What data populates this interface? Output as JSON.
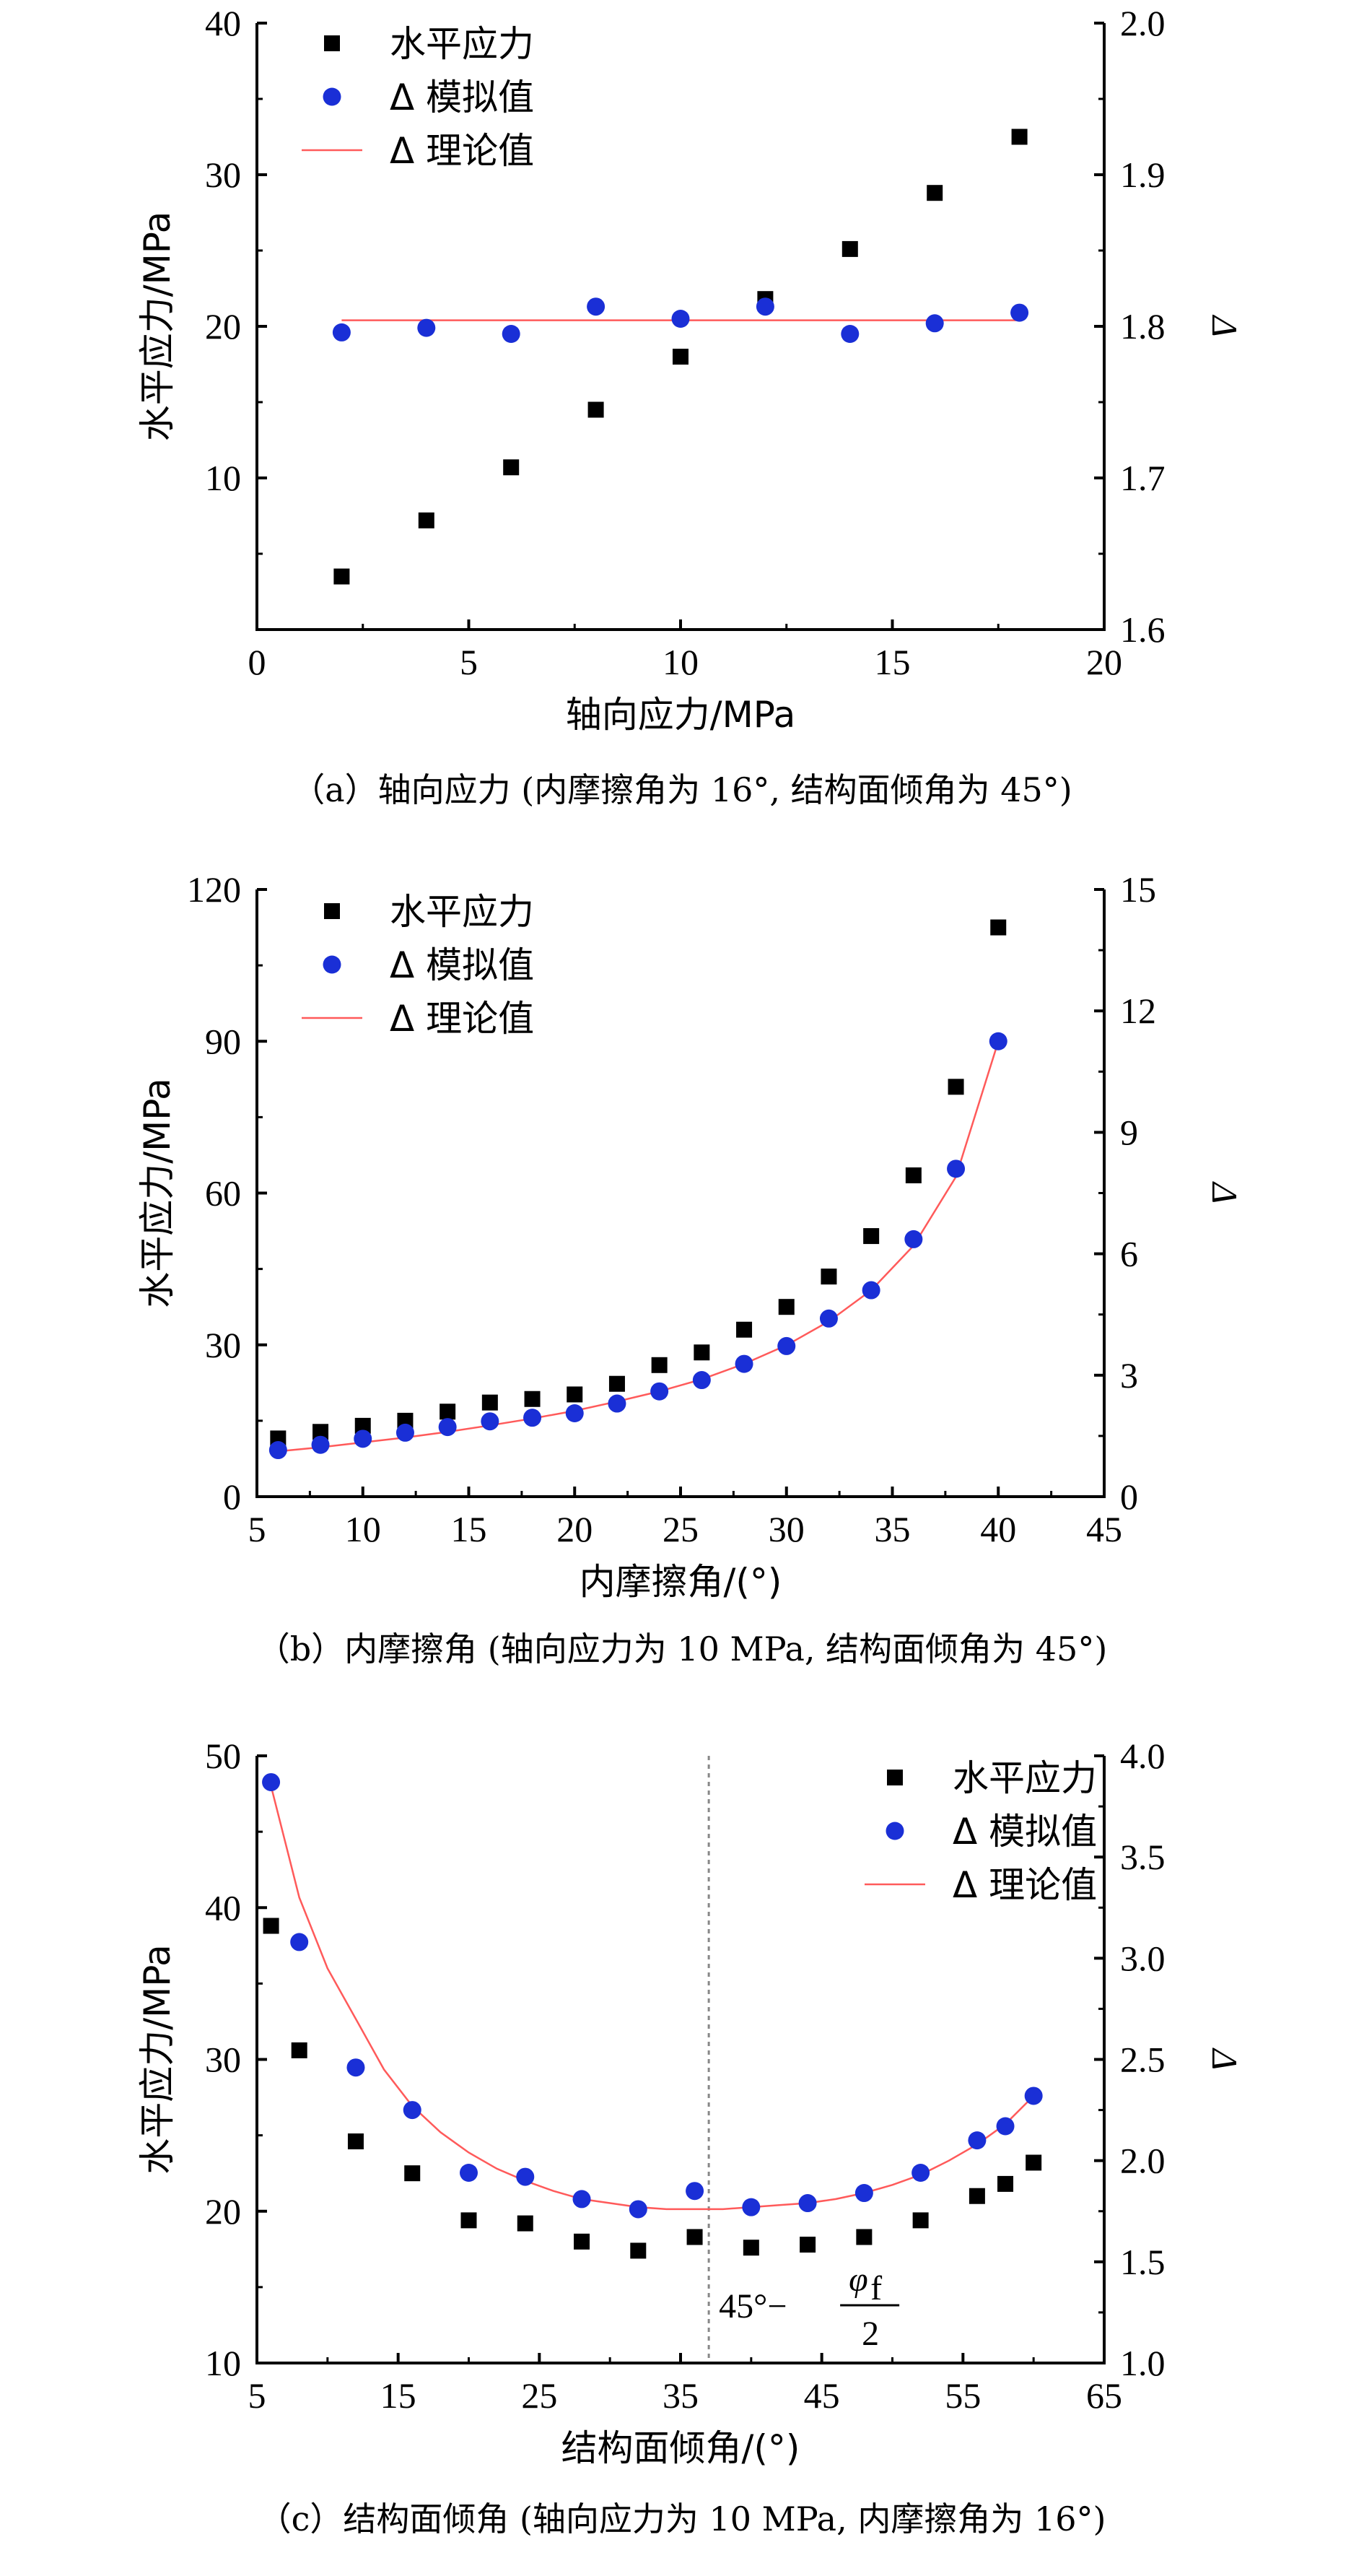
{
  "colors": {
    "horizontal": "#000000",
    "simulated": "#1a2fd6",
    "theory": "#ff5a5a",
    "refline": "#888888"
  },
  "chart_data": [
    {
      "type": "scatter",
      "xlabel": "轴向应力/MPa",
      "ylabel": "水平应力/MPa",
      "y2label": "Δ",
      "xlim": [
        0,
        20
      ],
      "ylim": [
        0,
        40
      ],
      "y2lim": [
        1.6,
        2.0
      ],
      "xticks": [
        "0",
        "5",
        "10",
        "15",
        "20"
      ],
      "yticks": [
        "10",
        "20",
        "30",
        "40"
      ],
      "y2ticks": [
        "1.6",
        "1.7",
        "1.8",
        "1.9",
        "2.0"
      ],
      "legend_position": "top-left",
      "caption": "（a）轴向应力 (内摩擦角为 16°, 结构面倾角为 45°)",
      "series": [
        {
          "name": "水平应力",
          "axis": "left",
          "kind": "square",
          "x": [
            2,
            4,
            6,
            8,
            10,
            12,
            14,
            16,
            18
          ],
          "y": [
            3.5,
            7.2,
            10.7,
            14.5,
            18.0,
            21.8,
            25.1,
            28.8,
            32.5
          ]
        },
        {
          "name": "Δ 模拟值",
          "axis": "right",
          "kind": "circle",
          "x": [
            2,
            4,
            6,
            8,
            10,
            12,
            14,
            16,
            18
          ],
          "y": [
            1.796,
            1.799,
            1.795,
            1.813,
            1.805,
            1.813,
            1.795,
            1.802,
            1.809
          ]
        },
        {
          "name": "Δ 理论值",
          "axis": "right",
          "kind": "line",
          "x": [
            2,
            18
          ],
          "y": [
            1.804,
            1.804
          ]
        }
      ]
    },
    {
      "type": "scatter",
      "xlabel": "内摩擦角/(°)",
      "ylabel": "水平应力/MPa",
      "y2label": "Δ",
      "xlim": [
        5,
        45
      ],
      "ylim": [
        0,
        120
      ],
      "y2lim": [
        0,
        15
      ],
      "xticks": [
        "5",
        "10",
        "15",
        "20",
        "25",
        "30",
        "35",
        "40",
        "45"
      ],
      "yticks": [
        "0",
        "30",
        "60",
        "90",
        "120"
      ],
      "y2ticks": [
        "0",
        "3",
        "6",
        "9",
        "12",
        "15"
      ],
      "legend_position": "top-left",
      "caption": "（b）内摩擦角 (轴向应力为 10 MPa, 结构面倾角为 45°)",
      "series": [
        {
          "name": "水平应力",
          "axis": "left",
          "kind": "square",
          "x": [
            6,
            8,
            10,
            12,
            14,
            16,
            18,
            20,
            22,
            24,
            26,
            28,
            30,
            32,
            34,
            36,
            38,
            40
          ],
          "y": [
            11.5,
            12.8,
            14.0,
            15.0,
            16.8,
            18.6,
            19.3,
            20.2,
            22.3,
            26.0,
            28.5,
            33.0,
            37.5,
            43.5,
            51.5,
            63.5,
            81.0,
            112.5
          ]
        },
        {
          "name": "Δ 模拟值",
          "axis": "right",
          "kind": "circle",
          "x": [
            6,
            8,
            10,
            12,
            14,
            16,
            18,
            20,
            22,
            24,
            26,
            28,
            30,
            32,
            34,
            36,
            38,
            40
          ],
          "y": [
            1.15,
            1.28,
            1.43,
            1.58,
            1.72,
            1.86,
            1.95,
            2.06,
            2.3,
            2.6,
            2.88,
            3.28,
            3.72,
            4.4,
            5.1,
            6.36,
            8.1,
            11.25
          ]
        },
        {
          "name": "Δ 理论值",
          "axis": "right",
          "kind": "line",
          "x": [
            6,
            8,
            10,
            12,
            14,
            16,
            18,
            20,
            22,
            24,
            26,
            28,
            30,
            32,
            34,
            36,
            38,
            40
          ],
          "y": [
            1.12,
            1.22,
            1.34,
            1.46,
            1.6,
            1.76,
            1.93,
            2.12,
            2.35,
            2.6,
            2.9,
            3.28,
            3.74,
            4.33,
            5.1,
            6.2,
            7.9,
            11.25
          ]
        }
      ]
    },
    {
      "type": "scatter",
      "xlabel": "结构面倾角/(°)",
      "ylabel": "水平应力/MPa",
      "y2label": "Δ",
      "xlim": [
        5,
        65
      ],
      "ylim": [
        10,
        50
      ],
      "y2lim": [
        1.0,
        4.0
      ],
      "xticks": [
        "5",
        "15",
        "25",
        "35",
        "45",
        "55",
        "65"
      ],
      "yticks": [
        "10",
        "20",
        "30",
        "40",
        "50"
      ],
      "y2ticks": [
        "1.0",
        "1.5",
        "2.0",
        "2.5",
        "3.0",
        "3.5",
        "4.0"
      ],
      "legend_position": "top-right",
      "caption": "（c）结构面倾角 (轴向应力为 10 MPa, 内摩擦角为 16°)",
      "reference_x": 37,
      "annotation": {
        "prefix": "45°−",
        "num": "φ",
        "sub": "f",
        "den": "2"
      },
      "series": [
        {
          "name": "水平应力",
          "axis": "left",
          "kind": "square",
          "x": [
            6,
            8,
            12,
            16,
            20,
            24,
            28,
            32,
            36,
            40,
            44,
            48,
            52,
            56,
            58,
            60
          ],
          "y": [
            38.8,
            30.6,
            24.6,
            22.5,
            19.4,
            19.2,
            18.0,
            17.4,
            18.3,
            17.6,
            17.8,
            18.3,
            19.4,
            21.0,
            21.8,
            23.2
          ]
        },
        {
          "name": "Δ 模拟值",
          "axis": "right",
          "kind": "circle",
          "x": [
            6,
            8,
            12,
            16,
            20,
            24,
            28,
            32,
            36,
            40,
            44,
            48,
            52,
            56,
            58,
            60
          ],
          "y": [
            3.87,
            3.08,
            2.46,
            2.25,
            1.94,
            1.92,
            1.81,
            1.76,
            1.85,
            1.77,
            1.79,
            1.84,
            1.94,
            2.1,
            2.17,
            2.32
          ]
        },
        {
          "name": "Δ 理论值",
          "axis": "right",
          "kind": "line",
          "x": [
            6,
            8,
            10,
            12,
            14,
            16,
            18,
            20,
            22,
            24,
            26,
            28,
            30,
            32,
            34,
            36,
            38,
            40,
            42,
            44,
            46,
            48,
            50,
            52,
            54,
            56,
            58,
            60
          ],
          "y": [
            3.85,
            3.3,
            2.95,
            2.7,
            2.45,
            2.27,
            2.14,
            2.04,
            1.96,
            1.9,
            1.85,
            1.81,
            1.79,
            1.77,
            1.76,
            1.76,
            1.76,
            1.77,
            1.78,
            1.79,
            1.81,
            1.84,
            1.88,
            1.93,
            2.0,
            2.08,
            2.18,
            2.32
          ]
        }
      ]
    }
  ]
}
